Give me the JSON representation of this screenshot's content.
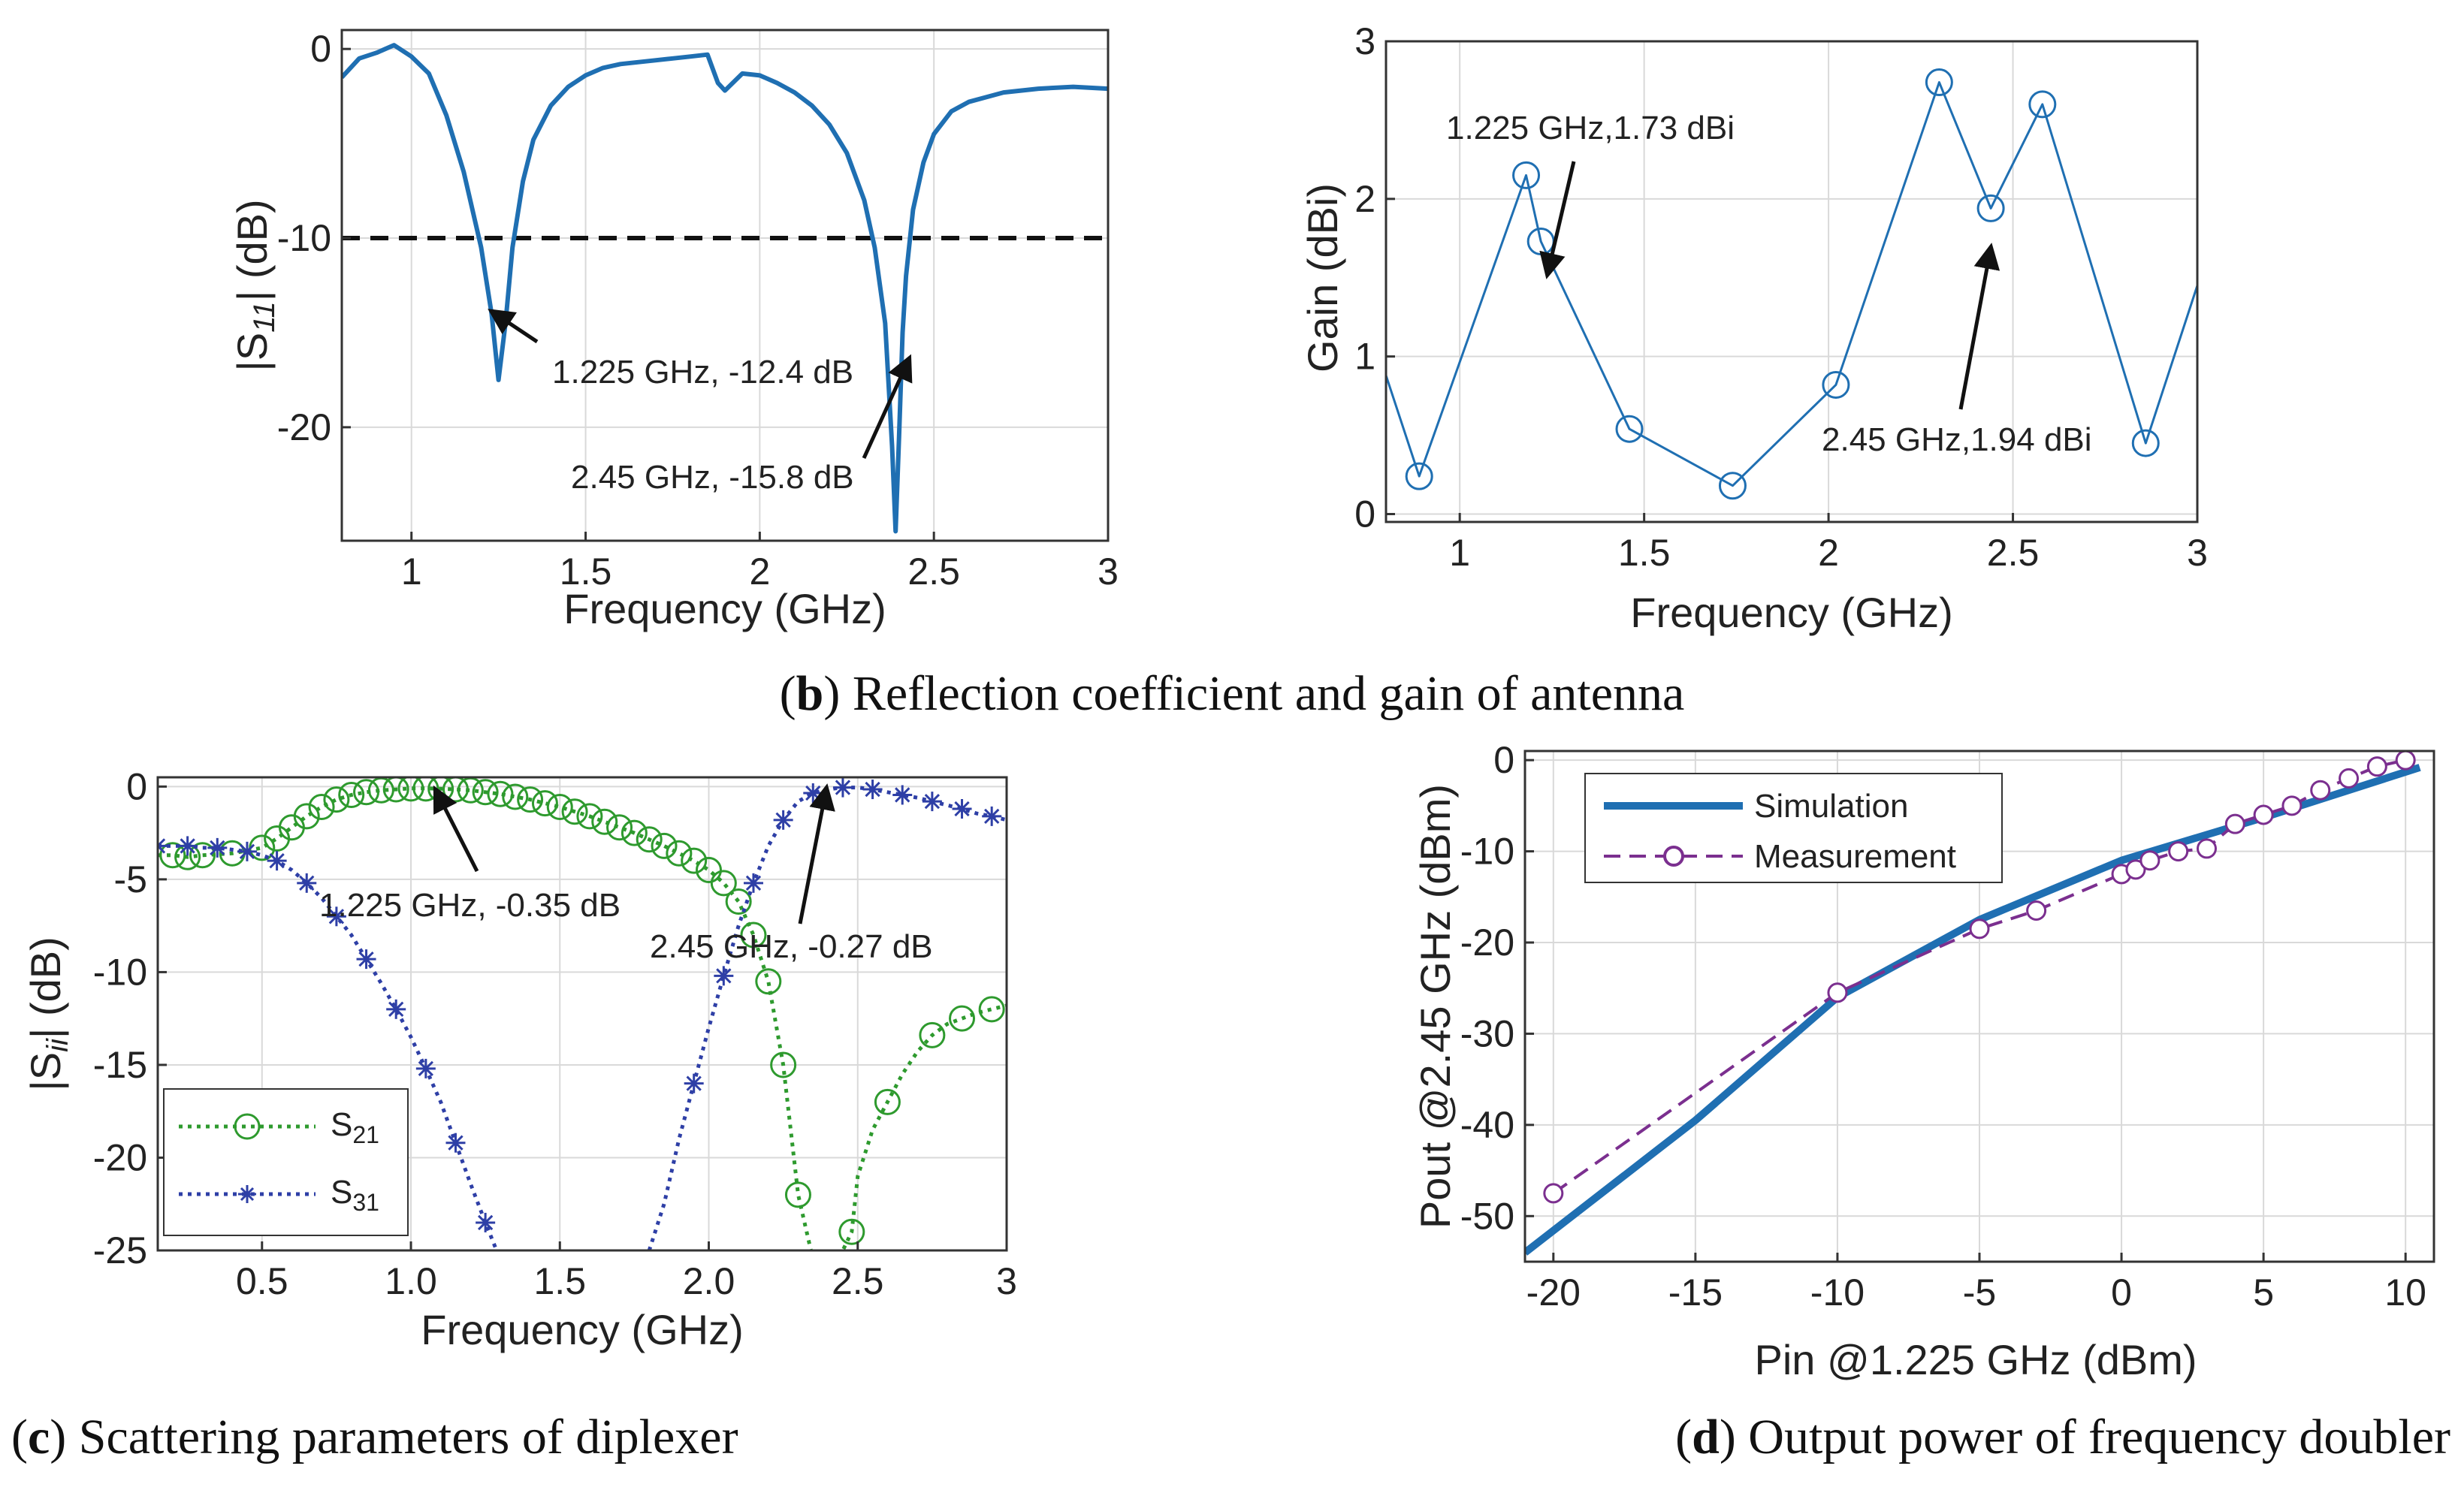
{
  "colors": {
    "blue": "#1f6fb2",
    "green": "#2e9a2e",
    "navy": "#2e3fa6",
    "purple": "#7b2f8f",
    "grid": "#d9d9d9"
  },
  "captions": {
    "b_letter": "b",
    "b_text": ") Reflection coefficient and gain of antenna",
    "c_letter": "c",
    "c_text": ") Scattering parameters of diplexer",
    "d_letter": "d",
    "d_text": ") Output power of frequency doubler",
    "open_paren": "("
  },
  "chart_data": [
    {
      "id": "s11",
      "type": "line",
      "xlabel": "Frequency (GHz)",
      "ylabel": "|S11| (dB)",
      "ylabel_parts": {
        "pre": "|S",
        "sub": "11",
        "post": "| (dB)"
      },
      "xlim": [
        0.8,
        3.0
      ],
      "ylim": [
        -26,
        1
      ],
      "xticks": [
        1,
        1.5,
        2,
        2.5,
        3
      ],
      "xtick_labels": [
        "1",
        "1.5",
        "2",
        "2.5",
        "3"
      ],
      "yticks": [
        0,
        -10,
        -20
      ],
      "ytick_labels": [
        "0",
        "-10",
        "-20"
      ],
      "threshold": -10,
      "series": [
        {
          "name": "S11",
          "color": "#1f6fb2",
          "x": [
            0.8,
            0.85,
            0.9,
            0.95,
            1.0,
            1.05,
            1.1,
            1.15,
            1.2,
            1.23,
            1.25,
            1.27,
            1.29,
            1.32,
            1.35,
            1.4,
            1.45,
            1.5,
            1.55,
            1.6,
            1.65,
            1.7,
            1.75,
            1.8,
            1.85,
            1.88,
            1.9,
            1.95,
            2.0,
            2.05,
            2.1,
            2.15,
            2.2,
            2.25,
            2.3,
            2.33,
            2.36,
            2.38,
            2.39,
            2.4,
            2.41,
            2.42,
            2.44,
            2.47,
            2.5,
            2.55,
            2.6,
            2.7,
            2.8,
            2.9,
            3.0
          ],
          "y": [
            -1.5,
            -0.5,
            -0.2,
            0.2,
            -0.4,
            -1.3,
            -3.5,
            -6.5,
            -10.5,
            -14.0,
            -17.5,
            -14.5,
            -10.5,
            -7.0,
            -4.8,
            -3.0,
            -2.0,
            -1.4,
            -1.0,
            -0.8,
            -0.7,
            -0.6,
            -0.5,
            -0.4,
            -0.3,
            -1.8,
            -2.2,
            -1.3,
            -1.4,
            -1.8,
            -2.3,
            -3.0,
            -4.0,
            -5.5,
            -8.0,
            -10.5,
            -14.5,
            -21.0,
            -25.5,
            -20.5,
            -15.0,
            -12.0,
            -8.5,
            -6.0,
            -4.5,
            -3.3,
            -2.8,
            -2.3,
            -2.1,
            -2.0,
            -2.1
          ]
        }
      ],
      "annotations": [
        {
          "text": "1.225 GHz, -12.4 dB",
          "x": 1.26,
          "y": -14.5
        },
        {
          "text": "2.45 GHz, -15.8 dB",
          "x": 2.41,
          "y": -17.5
        }
      ]
    },
    {
      "id": "gain",
      "type": "line",
      "xlabel": "Frequency (GHz)",
      "ylabel": "Gain (dBi)",
      "xlim": [
        0.8,
        3.0
      ],
      "ylim": [
        -0.05,
        3.0
      ],
      "xticks": [
        1,
        1.5,
        2,
        2.5,
        3
      ],
      "xtick_labels": [
        "1",
        "1.5",
        "2",
        "2.5",
        "3"
      ],
      "yticks": [
        0,
        1,
        2,
        3
      ],
      "ytick_labels": [
        "0",
        "1",
        "2",
        "3"
      ],
      "series": [
        {
          "name": "Gain",
          "color": "#1f6fb2",
          "x": [
            0.8,
            0.89,
            1.18,
            1.22,
            1.46,
            1.74,
            2.02,
            2.3,
            2.44,
            2.58,
            2.86,
            3.0
          ],
          "y": [
            0.88,
            0.24,
            2.15,
            1.73,
            0.54,
            0.18,
            0.82,
            2.74,
            1.94,
            2.6,
            0.45,
            1.45
          ],
          "markers": [
            1,
            2,
            3,
            4,
            5,
            6,
            7,
            8,
            9,
            10
          ]
        }
      ],
      "annotations": [
        {
          "text": "1.225 GHz,1.73 dBi",
          "x": 1.22,
          "y": 1.55
        },
        {
          "text": "2.45 GHz,1.94 dBi",
          "x": 2.45,
          "y": 1.6
        }
      ]
    },
    {
      "id": "diplexer",
      "type": "line",
      "xlabel": "Frequency (GHz)",
      "ylabel": "|Sii| (dB)",
      "ylabel_parts": {
        "pre": "|S",
        "sub": "ii",
        "post": "| (dB)"
      },
      "xlim": [
        0.15,
        3.0
      ],
      "ylim": [
        -25,
        0.5
      ],
      "xticks": [
        0.5,
        1.0,
        1.5,
        2.0,
        2.5,
        3
      ],
      "xtick_labels": [
        "0.5",
        "1.0",
        "1.5",
        "2.0",
        "2.5",
        "3"
      ],
      "yticks": [
        0,
        -5,
        -10,
        -15,
        -20,
        -25
      ],
      "ytick_labels": [
        "0",
        "-5",
        "-10",
        "-15",
        "-20",
        "-25"
      ],
      "series": [
        {
          "name": "S21",
          "legend_main": "S",
          "legend_sub": "21",
          "color": "#2e9a2e",
          "marker": "circle",
          "x": [
            0.15,
            0.2,
            0.25,
            0.3,
            0.4,
            0.5,
            0.55,
            0.6,
            0.65,
            0.7,
            0.75,
            0.8,
            0.85,
            0.9,
            0.95,
            1.0,
            1.05,
            1.1,
            1.15,
            1.2,
            1.25,
            1.3,
            1.35,
            1.4,
            1.45,
            1.5,
            1.55,
            1.6,
            1.65,
            1.7,
            1.75,
            1.8,
            1.85,
            1.9,
            1.95,
            2.0,
            2.05,
            2.1,
            2.15,
            2.2,
            2.25,
            2.3,
            2.35,
            2.4,
            2.45,
            2.48,
            2.5,
            2.55,
            2.6,
            2.65,
            2.7,
            2.75,
            2.8,
            2.85,
            2.9,
            2.95,
            3.0
          ],
          "y": [
            -3.7,
            -3.7,
            -3.8,
            -3.7,
            -3.6,
            -3.3,
            -2.8,
            -2.2,
            -1.6,
            -1.1,
            -0.7,
            -0.45,
            -0.3,
            -0.2,
            -0.15,
            -0.1,
            -0.1,
            -0.12,
            -0.15,
            -0.2,
            -0.3,
            -0.4,
            -0.55,
            -0.7,
            -0.9,
            -1.1,
            -1.35,
            -1.6,
            -1.9,
            -2.2,
            -2.5,
            -2.85,
            -3.2,
            -3.6,
            -4.0,
            -4.5,
            -5.2,
            -6.2,
            -8.0,
            -10.5,
            -15.0,
            -22.0,
            -25.5,
            -25.5,
            -25.0,
            -24.0,
            -21.0,
            -18.5,
            -17.0,
            -15.5,
            -14.3,
            -13.4,
            -12.8,
            -12.5,
            -12.2,
            -12.0,
            -11.8
          ],
          "markers": [
            1,
            2,
            3,
            4,
            5,
            6,
            7,
            8,
            9,
            10,
            11,
            12,
            13,
            14,
            15,
            16,
            17,
            18,
            19,
            20,
            21,
            22,
            23,
            24,
            25,
            26,
            27,
            28,
            29,
            30,
            31,
            32,
            33,
            34,
            35,
            36,
            37,
            38,
            39,
            40,
            41,
            45,
            48,
            51,
            53,
            55
          ]
        },
        {
          "name": "S31",
          "legend_main": "S",
          "legend_sub": "31",
          "color": "#2e3fa6",
          "marker": "star",
          "x": [
            0.15,
            0.2,
            0.25,
            0.3,
            0.35,
            0.4,
            0.45,
            0.5,
            0.55,
            0.6,
            0.65,
            0.7,
            0.75,
            0.8,
            0.85,
            0.9,
            0.95,
            1.0,
            1.05,
            1.1,
            1.15,
            1.2,
            1.25,
            1.3,
            1.35,
            1.75,
            1.8,
            1.85,
            1.9,
            1.95,
            2.0,
            2.05,
            2.1,
            2.15,
            2.2,
            2.25,
            2.3,
            2.35,
            2.4,
            2.45,
            2.5,
            2.55,
            2.6,
            2.65,
            2.7,
            2.75,
            2.8,
            2.85,
            2.9,
            2.95,
            3.0
          ],
          "y": [
            -3.2,
            -3.2,
            -3.2,
            -3.3,
            -3.3,
            -3.4,
            -3.5,
            -3.7,
            -4.0,
            -4.5,
            -5.2,
            -6.0,
            -7.0,
            -8.0,
            -9.3,
            -10.6,
            -12.0,
            -13.5,
            -15.2,
            -17.0,
            -19.2,
            -21.4,
            -23.5,
            -25.5,
            -27.5,
            -28.0,
            -25.0,
            -22.5,
            -19.0,
            -16.0,
            -13.0,
            -10.2,
            -7.5,
            -5.2,
            -3.2,
            -1.8,
            -0.8,
            -0.35,
            -0.15,
            -0.05,
            -0.05,
            -0.15,
            -0.3,
            -0.45,
            -0.6,
            -0.8,
            -1.0,
            -1.2,
            -1.45,
            -1.6,
            -1.8
          ],
          "markers": [
            0,
            2,
            4,
            6,
            8,
            10,
            12,
            14,
            16,
            18,
            20,
            22,
            24,
            29,
            31,
            33,
            35,
            37,
            39,
            41,
            43,
            45,
            47,
            49
          ]
        }
      ],
      "annotations": [
        {
          "text": "1.225 GHz, -0.35 dB",
          "x": 1.2,
          "y": -0.35
        },
        {
          "text": "2.45 GHz, -0.27 dB",
          "x": 2.4,
          "y": -0.27
        }
      ]
    },
    {
      "id": "doubler",
      "type": "line",
      "xlabel": "Pin @1.225 GHz (dBm)",
      "ylabel": "Pout @2.45 GHz (dBm)",
      "xlim": [
        -21,
        11
      ],
      "ylim": [
        -55,
        1
      ],
      "xticks": [
        -20,
        -15,
        -10,
        -5,
        0,
        5,
        10
      ],
      "xtick_labels": [
        "-20",
        "-15",
        "-10",
        "-5",
        "0",
        "5",
        "10"
      ],
      "yticks": [
        0,
        -10,
        -20,
        -30,
        -40,
        -50
      ],
      "ytick_labels": [
        "0",
        "-10",
        "-20",
        "-30",
        "-40",
        "-50"
      ],
      "legend": {
        "simulation": "Simulation",
        "measurement": "Measurement"
      },
      "series": [
        {
          "name": "Simulation",
          "color": "#1f6fb2",
          "style": "solid",
          "x": [
            -21,
            -15,
            -10,
            -5,
            0,
            5,
            10.5
          ],
          "y": [
            -54.0,
            -39.5,
            -26.0,
            -17.5,
            -11.0,
            -6.3,
            -0.8
          ]
        },
        {
          "name": "Measurement",
          "color": "#7b2f8f",
          "style": "dashed",
          "x": [
            -20,
            -10,
            -5,
            -3,
            0,
            0.5,
            1,
            2,
            3,
            4,
            5,
            6,
            7,
            8,
            9,
            10
          ],
          "y": [
            -47.5,
            -25.5,
            -18.5,
            -16.5,
            -12.5,
            -12.0,
            -11.0,
            -10.0,
            -9.7,
            -7.0,
            -6.0,
            -5.0,
            -3.3,
            -2.0,
            -0.7,
            0.0
          ]
        }
      ]
    }
  ]
}
